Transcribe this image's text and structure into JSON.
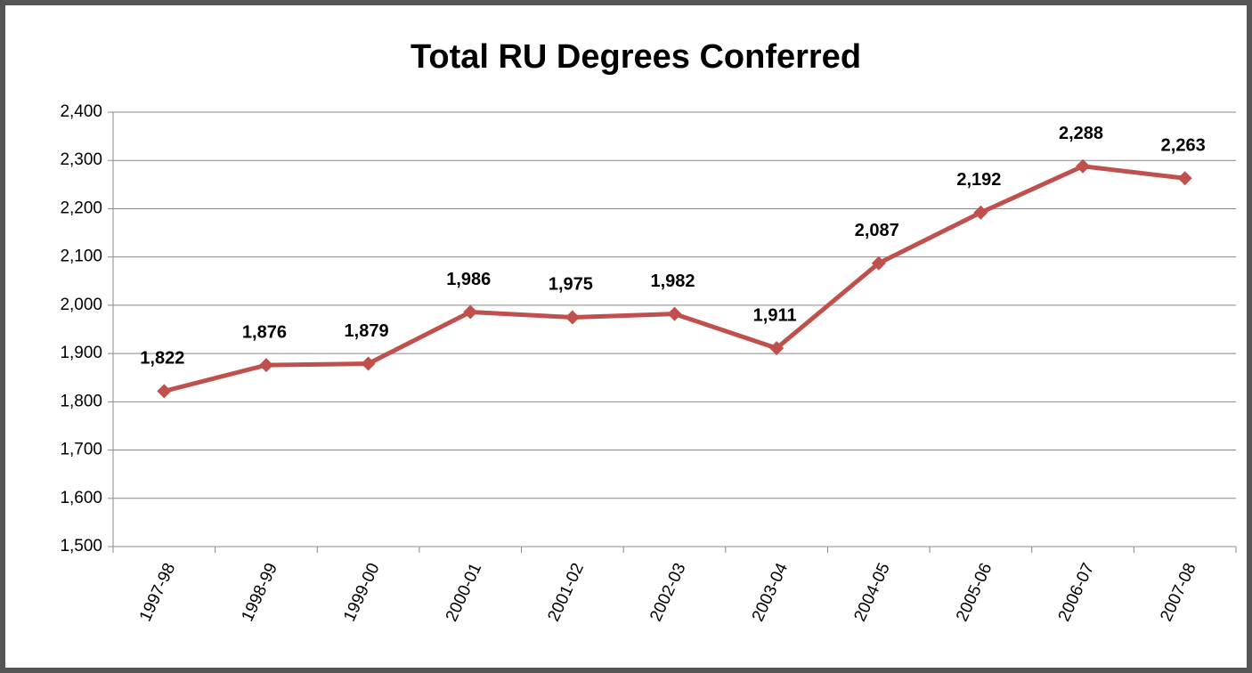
{
  "chart_data": {
    "type": "line",
    "title": "Total RU Degrees Conferred",
    "categories": [
      "1997-98",
      "1998-99",
      "1999-00",
      "2000-01",
      "2001-02",
      "2002-03",
      "2003-04",
      "2004-05",
      "2005-06",
      "2006-07",
      "2007-08"
    ],
    "series": [
      {
        "name": "Total RU Degrees Conferred",
        "color": "#c0504d",
        "values": [
          1822,
          1876,
          1879,
          1986,
          1975,
          1982,
          1911,
          2087,
          2192,
          2288,
          2263
        ],
        "value_labels": [
          "1,822",
          "1,876",
          "1,879",
          "1,986",
          "1,975",
          "1,982",
          "1,911",
          "2,087",
          "2,192",
          "2,288",
          "2,263"
        ]
      }
    ],
    "ylim": [
      1500,
      2400
    ],
    "yticks": [
      {
        "value": 1500,
        "label": "1,500"
      },
      {
        "value": 1600,
        "label": "1,600"
      },
      {
        "value": 1700,
        "label": "1,700"
      },
      {
        "value": 1800,
        "label": "1,800"
      },
      {
        "value": 1900,
        "label": "1,900"
      },
      {
        "value": 2000,
        "label": "2,000"
      },
      {
        "value": 2100,
        "label": "2,100"
      },
      {
        "value": 2200,
        "label": "2,200"
      },
      {
        "value": 2300,
        "label": "2,300"
      },
      {
        "value": 2400,
        "label": "2,400"
      }
    ],
    "grid": true
  }
}
